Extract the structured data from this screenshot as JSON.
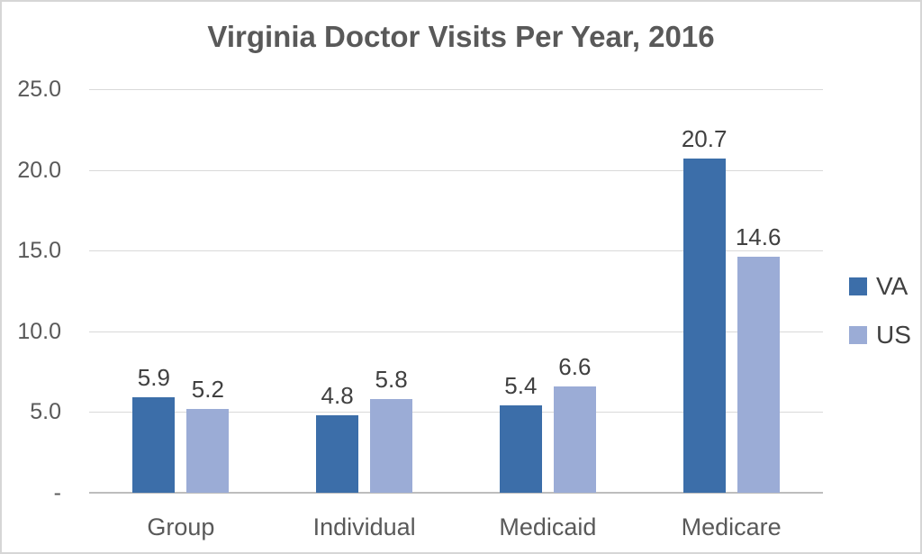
{
  "chart_data": {
    "type": "bar",
    "title": "Virginia Doctor Visits Per Year, 2016",
    "xlabel": "",
    "ylabel": "",
    "categories": [
      "Group",
      "Individual",
      "Medicaid",
      "Medicare"
    ],
    "series": [
      {
        "name": "VA",
        "color": "#3C6EA9",
        "values": [
          5.9,
          4.8,
          5.4,
          20.7
        ],
        "labels": [
          "5.9",
          "4.8",
          "5.4",
          "20.7"
        ]
      },
      {
        "name": "US",
        "color": "#9BACD6",
        "values": [
          5.2,
          5.8,
          6.6,
          14.6
        ],
        "labels": [
          "5.2",
          "5.8",
          "6.6",
          "14.6"
        ]
      }
    ],
    "ylim": [
      0,
      25
    ],
    "yticks": [
      {
        "value": 25,
        "label": "25.0"
      },
      {
        "value": 20,
        "label": "20.0"
      },
      {
        "value": 15,
        "label": "15.0"
      },
      {
        "value": 10,
        "label": "10.0"
      },
      {
        "value": 5,
        "label": "5.0"
      },
      {
        "value": 0,
        "label": "-"
      }
    ],
    "grid": true,
    "data_labels": true,
    "legend_position": "right"
  },
  "style_colors": {
    "gridline": "#d9d9d9",
    "axis_line": "#bdbdbd",
    "title_text": "#595959",
    "tick_text": "#595959",
    "data_label_text": "#404040",
    "frame_border": "#d6d6d6"
  }
}
